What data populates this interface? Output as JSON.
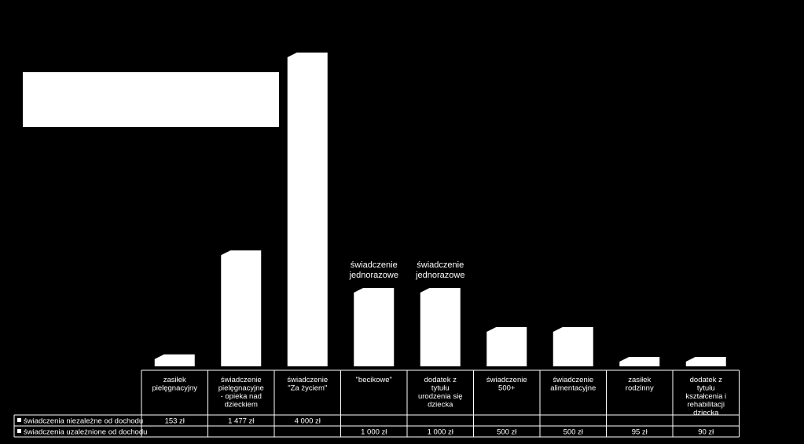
{
  "chart_data": {
    "type": "bar",
    "categories": [
      [
        "zasiłek",
        "pielęgnacyjny"
      ],
      [
        "świadczenie",
        "pielęgnacyjne",
        "- opieka nad",
        "dzieckiem"
      ],
      [
        "świadczenie",
        "\"Za życiem\""
      ],
      [
        "\"becikowe\""
      ],
      [
        "dodatek  z",
        "tytułu",
        "urodzenia się",
        "dziecka"
      ],
      [
        "świadczenie",
        "500+"
      ],
      [
        "świadczenie",
        "alimentacyjne"
      ],
      [
        "zasiłek",
        "rodzinny"
      ],
      [
        "dodatek z",
        "tytułu",
        "kształcenia i",
        "rehabilitacji",
        "dziecka"
      ]
    ],
    "series": [
      {
        "name": "świadczenia niezależne od dochodu",
        "values": [
          153,
          1477,
          4000,
          null,
          null,
          null,
          null,
          null,
          null
        ],
        "labels": [
          "153 zł",
          "1 477 zł",
          "4 000 zł",
          "",
          "",
          "",
          "",
          "",
          ""
        ]
      },
      {
        "name": "świadczenia uzależnione od dochodu",
        "values": [
          null,
          null,
          null,
          1000,
          1000,
          500,
          500,
          95,
          90
        ],
        "labels": [
          "",
          "",
          "",
          "1 000 zł",
          "1 000 zł",
          "500 zł",
          "500 zł",
          "95 zł",
          "90 zł"
        ]
      }
    ],
    "annotations": [
      {
        "category_index": 3,
        "lines": [
          "świadczenie",
          "jednorazowe"
        ]
      },
      {
        "category_index": 4,
        "lines": [
          "świadczenie",
          "jednorazowe"
        ]
      }
    ],
    "ylim": [
      0,
      4000
    ],
    "legend": "data-table-left",
    "colors": {
      "background": "#000000",
      "bar": "#ffffff",
      "text": "#ffffff"
    }
  }
}
